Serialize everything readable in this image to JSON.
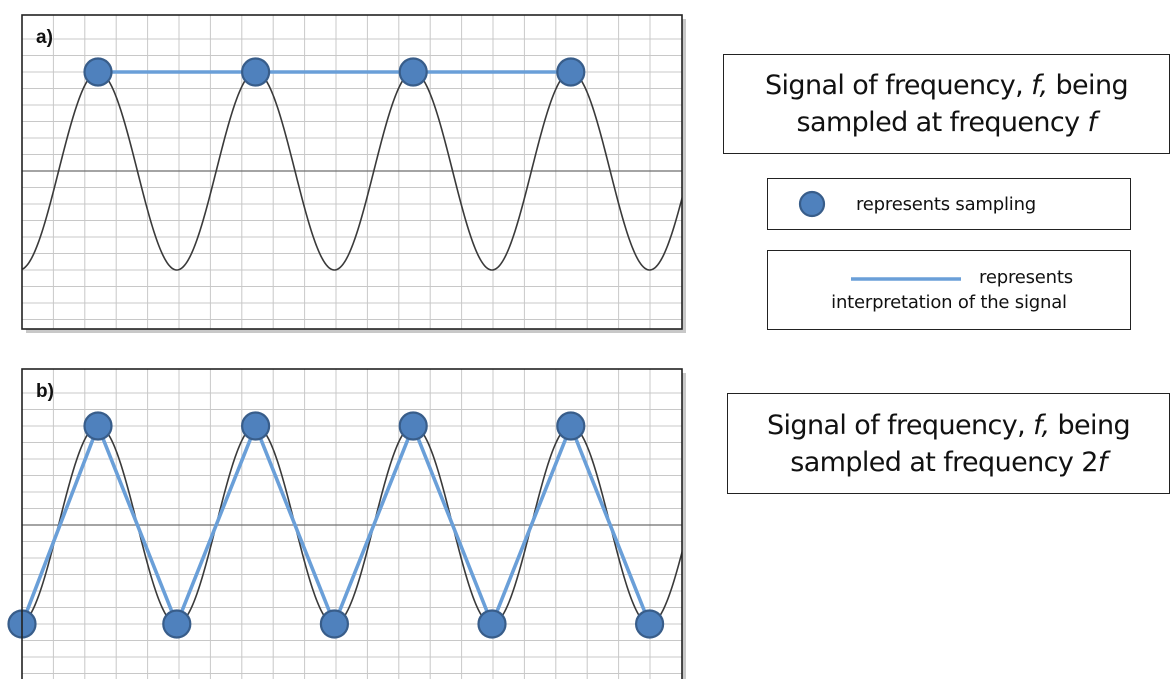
{
  "panels": [
    {
      "label": "a)",
      "signal": "sine",
      "sampling": "f"
    },
    {
      "label": "b)",
      "signal": "sine",
      "sampling": "2f"
    }
  ],
  "captions": [
    {
      "line1_pre": "Signal of frequency,",
      "line1_var": "f,",
      "line1_post": "being",
      "line2_pre": "sampled at frequency",
      "line2_var": "f"
    },
    {
      "line1_pre": "Signal of frequency,",
      "line1_var": "f,",
      "line1_post": "being",
      "line2_pre": "sampled at frequency 2",
      "line2_var": "f"
    }
  ],
  "legend": {
    "sampling_text": "represents sampling",
    "interpretation_line1": "represents",
    "interpretation_line2": "interpretation of the signal"
  },
  "colors": {
    "signal": "#3a3a3a",
    "interpretation": "#6a9fd8",
    "sample_fill": "#4f81bd",
    "sample_stroke": "#385d8a",
    "grid": "#c8c8c8",
    "axis": "#6e6e6e",
    "frame": "#222222"
  }
}
